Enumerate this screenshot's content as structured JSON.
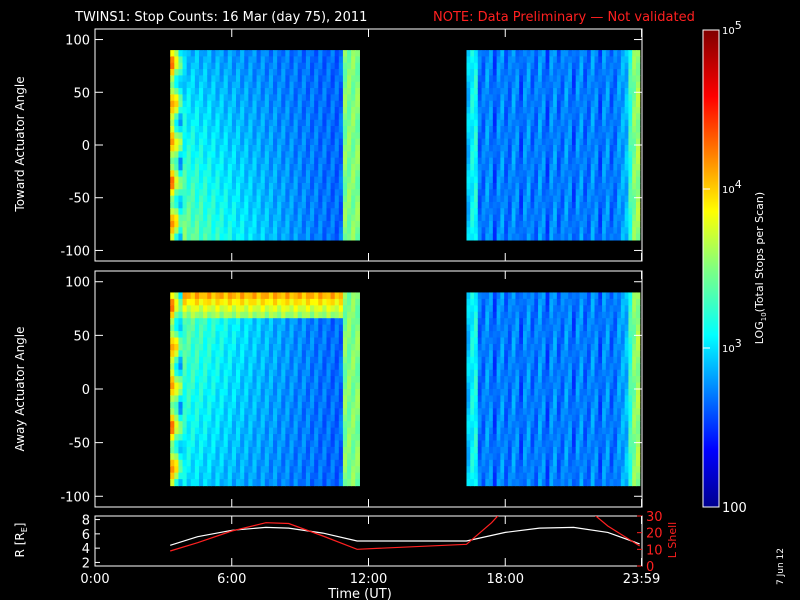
{
  "header": {
    "title": "TWINS1: Stop Counts: 16 Mar (day  75), 2011",
    "note": "NOTE: Data Preliminary — Not validated",
    "note_color": "#ff2020"
  },
  "side_stamp": "7 Jun 12",
  "colors": {
    "background": "#000000",
    "foreground": "#ffffff",
    "lshell": "#ff2020"
  },
  "chart_data": [
    {
      "type": "heatmap",
      "ylabel": "Toward Actuator Angle",
      "ylim": [
        -110,
        110
      ],
      "yticks": [
        100,
        50,
        0,
        -50,
        -100
      ],
      "xlim": [
        0,
        24
      ],
      "data_blocks": [
        {
          "start_hour": 3.3,
          "end_hour": 11.6,
          "angle_range": [
            -90,
            90
          ]
        },
        {
          "start_hour": 16.3,
          "end_hour": 23.9,
          "angle_range": [
            -90,
            90
          ]
        }
      ],
      "grid": false
    },
    {
      "type": "heatmap",
      "ylabel": "Away Actuator Angle",
      "ylim": [
        -110,
        110
      ],
      "yticks": [
        100,
        50,
        0,
        -50,
        -100
      ],
      "xlim": [
        0,
        24
      ],
      "data_blocks": [
        {
          "start_hour": 3.3,
          "end_hour": 11.6,
          "angle_range": [
            -90,
            90
          ]
        },
        {
          "start_hour": 16.3,
          "end_hour": 23.9,
          "angle_range": [
            -90,
            90
          ]
        }
      ],
      "grid": false
    },
    {
      "type": "line",
      "xlabel": "Time (UT)",
      "xticks": [
        {
          "hour": 0,
          "label": "0:00"
        },
        {
          "hour": 6,
          "label": "6:00"
        },
        {
          "hour": 12,
          "label": "12:00"
        },
        {
          "hour": 18,
          "label": "18:00"
        },
        {
          "hour": 23.98,
          "label": "23:59"
        }
      ],
      "xlim": [
        0,
        24
      ],
      "ylabel_left": "R [R",
      "ylabel_left_sub": "E",
      "ylabel_left_end": "]",
      "ylim_left": [
        1.5,
        8.5
      ],
      "yticks_left": [
        8,
        6,
        4,
        2
      ],
      "ylabel_right": "L Shell",
      "ylim_right": [
        0,
        30
      ],
      "yticks_right": [
        30,
        20,
        10,
        0
      ],
      "series": [
        {
          "axis": "left",
          "x": [
            3.3,
            4.5,
            6.0,
            7.5,
            8.5,
            10.0,
            11.5,
            16.3,
            18.0,
            19.5,
            21.0,
            22.5,
            23.9
          ],
          "y": [
            4.4,
            5.6,
            6.5,
            6.9,
            6.8,
            6.1,
            5.0,
            5.0,
            6.2,
            6.8,
            6.9,
            6.2,
            4.6
          ]
        },
        {
          "axis": "right",
          "x": [
            3.3,
            4.5,
            6.0,
            7.5,
            8.5,
            10.0,
            11.5,
            16.3,
            17.4,
            17.8,
            21.8,
            22.5,
            23.9
          ],
          "y": [
            9,
            14,
            21,
            26,
            25.5,
            18,
            10,
            13,
            26,
            32,
            32,
            24,
            12
          ]
        }
      ]
    }
  ],
  "colorbar": {
    "label": "LOG",
    "label_sub": "10",
    "label_end": "(Total Stops per Scan)",
    "scale": "log",
    "range": [
      100,
      100000
    ],
    "ticks": [
      {
        "value": 100000,
        "label": "10",
        "sup": "5"
      },
      {
        "value": 10000,
        "label": "10",
        "sup": "4"
      },
      {
        "value": 1000,
        "label": "10",
        "sup": "3"
      },
      {
        "value": 100,
        "label": "100",
        "sup": ""
      }
    ]
  }
}
